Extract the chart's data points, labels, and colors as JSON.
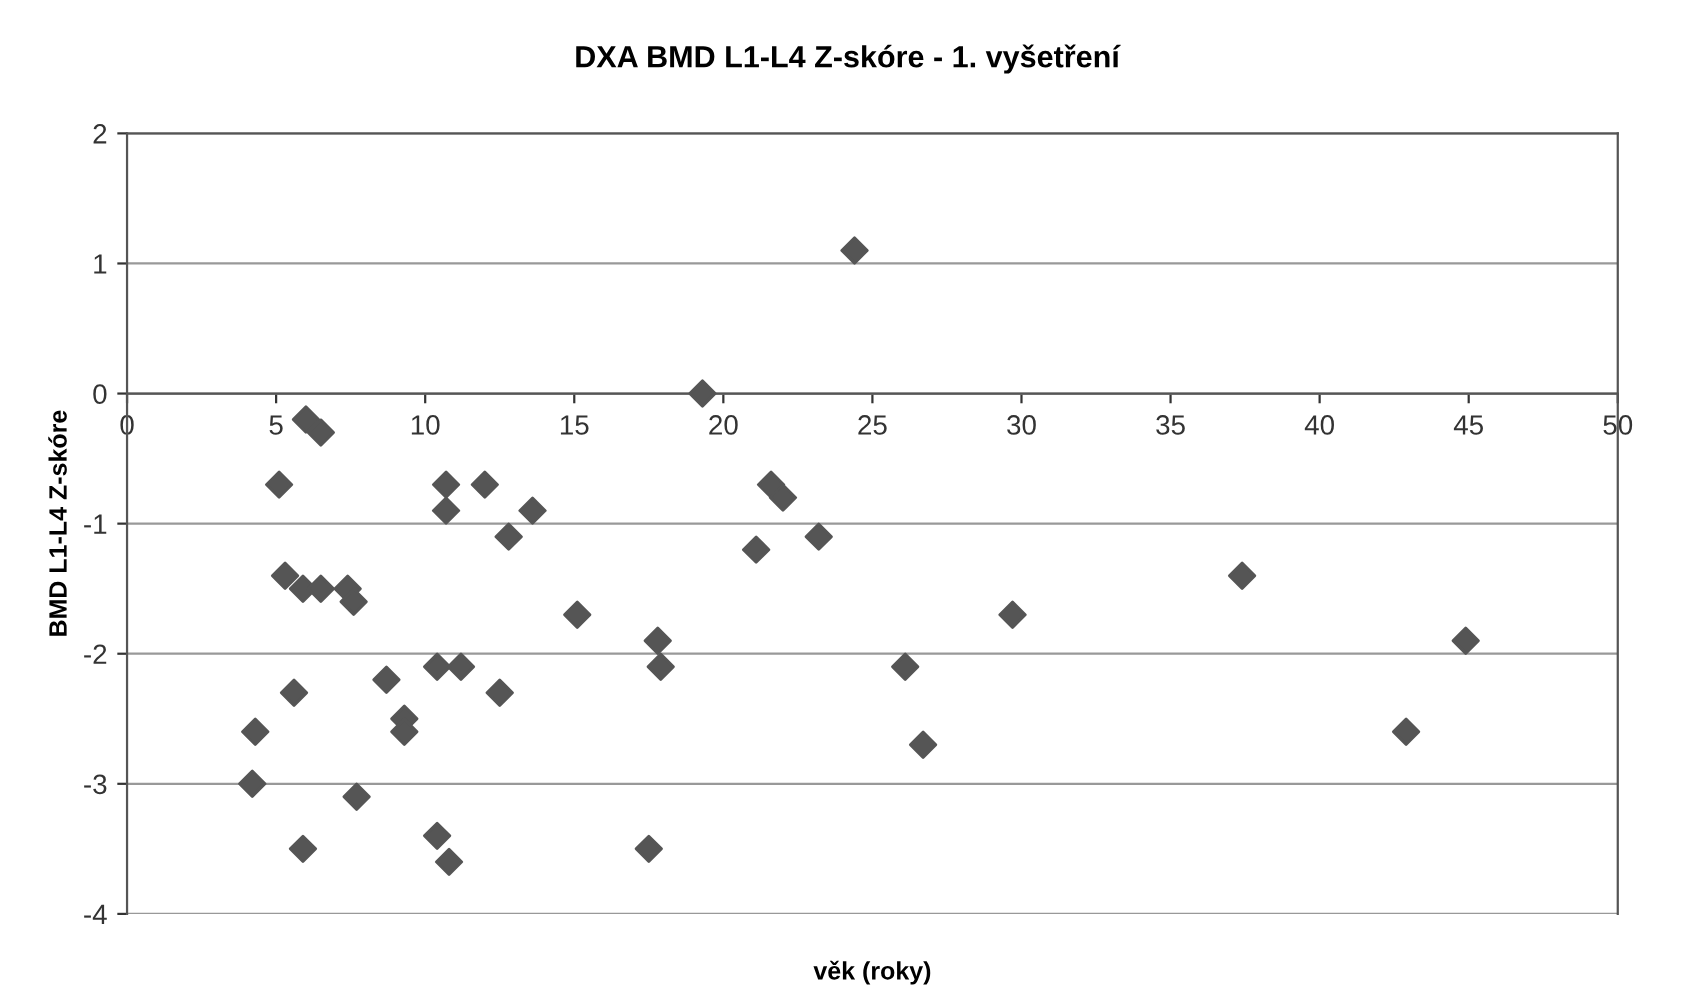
{
  "chart_data": {
    "type": "scatter",
    "title": "DXA BMD L1-L4 Z-skóre - 1. vyšetření",
    "xlabel": "věk (roky)",
    "ylabel": "BMD L1-L4 Z-skóre",
    "xlim": [
      0,
      50
    ],
    "xticks": [
      0,
      5,
      10,
      15,
      20,
      25,
      30,
      35,
      40,
      45,
      50
    ],
    "ylim": [
      -4,
      2
    ],
    "yticks": [
      -4,
      -3,
      -2,
      -1,
      0,
      1,
      2
    ],
    "grid": "y",
    "marker": "diamond",
    "series": [
      {
        "color": "#555555",
        "x": [
          6.0,
          6.5,
          5.1,
          10.7,
          12.0,
          10.7,
          13.6,
          12.8,
          5.3,
          5.9,
          6.5,
          7.4,
          7.6,
          15.1,
          10.4,
          11.2,
          8.7,
          5.6,
          12.5,
          9.3,
          9.3,
          4.3,
          4.2,
          7.7,
          10.4,
          10.8,
          5.9,
          24.4,
          19.3,
          21.6,
          22.0,
          21.1,
          23.2,
          29.7,
          17.8,
          17.9,
          26.1,
          26.7,
          17.5,
          37.4,
          44.9,
          42.9
        ],
        "values": [
          -0.2,
          -0.3,
          -0.7,
          -0.7,
          -0.7,
          -0.9,
          -0.9,
          -1.1,
          -1.4,
          -1.5,
          -1.5,
          -1.5,
          -1.6,
          -1.7,
          -2.1,
          -2.1,
          -2.2,
          -2.3,
          -2.3,
          -2.5,
          -2.6,
          -2.6,
          -3.0,
          -3.1,
          -3.4,
          -3.6,
          -3.5,
          1.1,
          0.0,
          -0.7,
          -0.8,
          -1.2,
          -1.1,
          -1.7,
          -1.9,
          -2.1,
          -2.1,
          -2.7,
          -3.5,
          -1.4,
          -1.9,
          -2.6
        ]
      }
    ]
  }
}
